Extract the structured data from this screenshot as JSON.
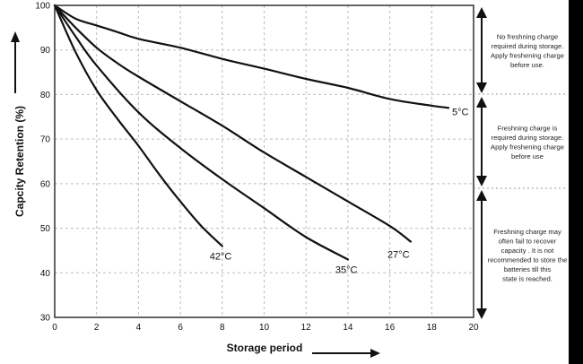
{
  "chart_data": {
    "type": "line",
    "title": "",
    "xlabel": "Storage period",
    "ylabel": "Capcity Retention (%)",
    "xlim": [
      0,
      20
    ],
    "ylim": [
      30,
      100
    ],
    "xticks": [
      0,
      2,
      4,
      6,
      8,
      10,
      12,
      14,
      16,
      18,
      20
    ],
    "yticks": [
      30,
      40,
      50,
      60,
      70,
      80,
      90,
      100
    ],
    "grid": true,
    "legend": "none",
    "series": [
      {
        "name": "5°C",
        "x": [
          0,
          1,
          2,
          3,
          4,
          6,
          8,
          10,
          12,
          14,
          16,
          18,
          18.8
        ],
        "y": [
          100,
          97,
          95.5,
          94,
          92.5,
          90.5,
          88,
          85.8,
          83.5,
          81.5,
          79,
          77.5,
          77
        ]
      },
      {
        "name": "27°C",
        "x": [
          0,
          1,
          2,
          3,
          4,
          6,
          8,
          10,
          12,
          14,
          16,
          17
        ],
        "y": [
          100,
          95,
          90.5,
          87,
          84,
          78.5,
          73,
          67,
          61.5,
          56,
          50.5,
          47
        ]
      },
      {
        "name": "35°C",
        "x": [
          0,
          1,
          2,
          4,
          6,
          8,
          10,
          12,
          14
        ],
        "y": [
          100,
          93,
          86.5,
          76,
          68,
          61,
          54.5,
          48,
          43
        ]
      },
      {
        "name": "42°C",
        "x": [
          0,
          1,
          2,
          3,
          4,
          5,
          6,
          7,
          8
        ],
        "y": [
          100,
          89.5,
          81,
          74.5,
          68.5,
          62,
          56,
          50.5,
          46
        ]
      }
    ],
    "annotations": [
      "No freshning charge required during storage. Apply freshening charge before use.",
      "Freshning charge is required during storage. Apply freshening charge before use",
      "Freshning charge may often fail to recover capacity . It is not recommended to store the batteries till this state is reached."
    ]
  }
}
